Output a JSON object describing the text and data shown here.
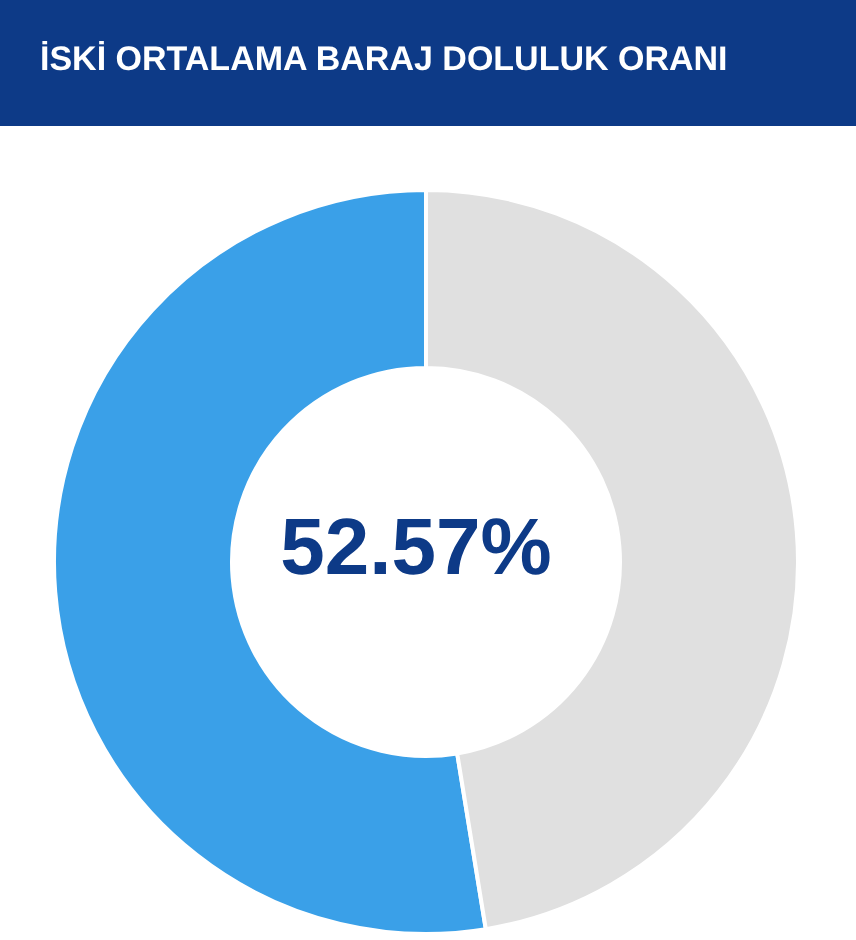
{
  "chart_data": {
    "type": "donut",
    "title": "İSKİ ORTALAMA BARAJ DOLULUK ORANI",
    "categories": [
      null,
      null
    ],
    "values": [
      52.57,
      47.43
    ],
    "colors": [
      "#3aa0e8",
      "#e0e0e0"
    ],
    "annotations": [
      "52.57%"
    ],
    "legend": false
  }
}
